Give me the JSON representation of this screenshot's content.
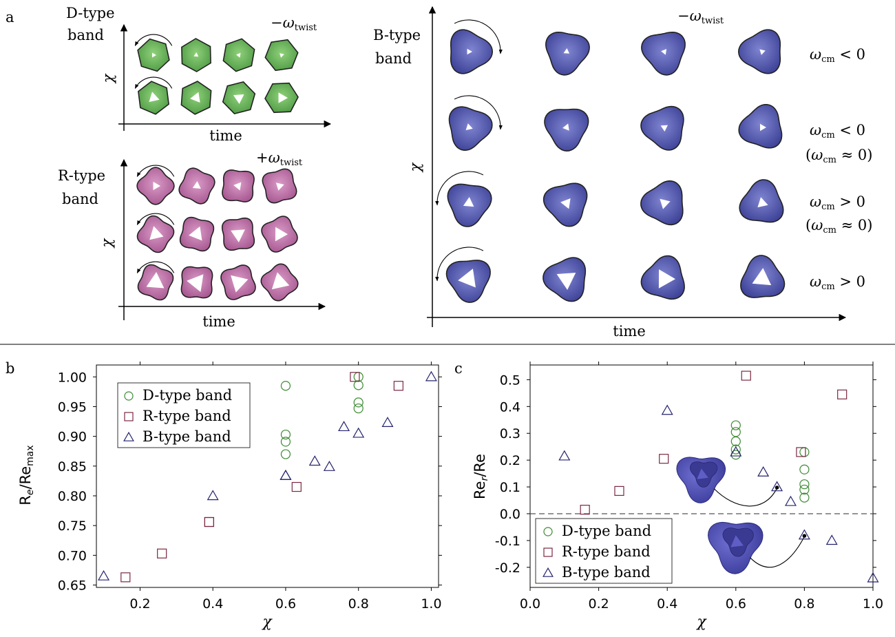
{
  "panel_a": {
    "letter": "a",
    "d_type": {
      "title_line1": "D-type",
      "title_line2": "band",
      "twist_label": "−ω",
      "twist_sub": "twist",
      "ylabel": "χ",
      "xlabel": "time",
      "color": "#5aa44c",
      "rows": 2,
      "cols": 4
    },
    "r_type": {
      "title_line1": "R-type",
      "title_line2": "band",
      "twist_label": "+ω",
      "twist_sub": "twist",
      "ylabel": "χ",
      "xlabel": "time",
      "color": "#b56a9e",
      "rows": 3,
      "cols": 4
    },
    "b_type": {
      "title_line1": "B-type",
      "title_line2": "band",
      "twist_label": "−ω",
      "twist_sub": "twist",
      "ylabel": "χ",
      "xlabel": "time",
      "color": "#4a4fa6",
      "rows": 4,
      "cols": 4,
      "row_labels": [
        {
          "main": "ω",
          "sub": "cm",
          "rel": " < 0",
          "paren": ""
        },
        {
          "main": "ω",
          "sub": "cm",
          "rel": " < 0",
          "paren": "(ω",
          "paren_sub": "cm",
          "paren_rel": " ≈ 0)"
        },
        {
          "main": "ω",
          "sub": "cm",
          "rel": " > 0",
          "paren": "(ω",
          "paren_sub": "cm",
          "paren_rel": " ≈ 0)"
        },
        {
          "main": "ω",
          "sub": "cm",
          "rel": " > 0",
          "paren": ""
        }
      ]
    }
  },
  "chart_data": [
    {
      "panel": "b",
      "type": "scatter",
      "xlabel": "χ",
      "ylabel_main": "R",
      "ylabel_sub": "e",
      "ylabel_rest": "/Re",
      "ylabel_rest_sub": "max",
      "xlim": [
        0.08,
        1.02
      ],
      "ylim": [
        0.646,
        1.02
      ],
      "xticks": [
        "0.2",
        "0.4",
        "0.6",
        "0.8",
        "1.0"
      ],
      "xtick_values": [
        0.2,
        0.4,
        0.6,
        0.8,
        1.0
      ],
      "yticks": [
        "0.65",
        "0.70",
        "0.75",
        "0.80",
        "0.85",
        "0.90",
        "0.95",
        "1.00"
      ],
      "ytick_values": [
        0.65,
        0.7,
        0.75,
        0.8,
        0.85,
        0.9,
        0.95,
        1.0
      ],
      "legend_position": "top-left",
      "series": [
        {
          "name": "D-type band",
          "marker": "circle",
          "color": "#3a8a30",
          "points": [
            [
              0.6,
              0.985
            ],
            [
              0.6,
              0.903
            ],
            [
              0.6,
              0.891
            ],
            [
              0.6,
              0.87
            ],
            [
              0.8,
              1.0
            ],
            [
              0.8,
              0.986
            ],
            [
              0.8,
              0.957
            ],
            [
              0.8,
              0.947
            ]
          ]
        },
        {
          "name": "R-type band",
          "marker": "square",
          "color": "#7a2840",
          "points": [
            [
              0.16,
              0.663
            ],
            [
              0.26,
              0.703
            ],
            [
              0.39,
              0.756
            ],
            [
              0.39,
              0.756
            ],
            [
              0.63,
              0.815
            ],
            [
              0.79,
              1.0
            ],
            [
              0.91,
              0.985
            ]
          ]
        },
        {
          "name": "B-type band",
          "marker": "triangle",
          "color": "#24236e",
          "points": [
            [
              0.1,
              0.665
            ],
            [
              0.4,
              0.8
            ],
            [
              0.6,
              0.834
            ],
            [
              0.6,
              0.834
            ],
            [
              0.68,
              0.858
            ],
            [
              0.72,
              0.849
            ],
            [
              0.76,
              0.916
            ],
            [
              0.8,
              0.905
            ],
            [
              0.88,
              0.923
            ],
            [
              1.0,
              1.0
            ]
          ]
        }
      ]
    },
    {
      "panel": "c",
      "type": "scatter",
      "xlabel": "χ",
      "ylabel_main": "Re",
      "ylabel_sub": "r",
      "ylabel_rest": "/Re",
      "xlim": [
        0.0,
        1.0
      ],
      "ylim": [
        -0.275,
        0.555
      ],
      "xticks": [
        "0.0",
        "0.2",
        "0.4",
        "0.6",
        "0.8",
        "1.0"
      ],
      "xtick_values": [
        0.0,
        0.2,
        0.4,
        0.6,
        0.8,
        1.0
      ],
      "yticks": [
        "-0.2",
        "-0.1",
        "0.0",
        "0.1",
        "0.2",
        "0.3",
        "0.4",
        "0.5"
      ],
      "ytick_values": [
        -0.2,
        -0.1,
        0.0,
        0.1,
        0.2,
        0.3,
        0.4,
        0.5
      ],
      "zero_line": 0.0,
      "legend_position": "bottom-left",
      "series": [
        {
          "name": "D-type band",
          "marker": "circle",
          "color": "#3a8a30",
          "points": [
            [
              0.6,
              0.33
            ],
            [
              0.6,
              0.305
            ],
            [
              0.6,
              0.27
            ],
            [
              0.6,
              0.24
            ],
            [
              0.6,
              0.22
            ],
            [
              0.8,
              0.23
            ],
            [
              0.8,
              0.165
            ],
            [
              0.8,
              0.11
            ],
            [
              0.8,
              0.09
            ],
            [
              0.8,
              0.06
            ]
          ]
        },
        {
          "name": "R-type band",
          "marker": "square",
          "color": "#7a2840",
          "points": [
            [
              0.16,
              0.015
            ],
            [
              0.26,
              0.085
            ],
            [
              0.39,
              0.205
            ],
            [
              0.63,
              0.515
            ],
            [
              0.79,
              0.23
            ],
            [
              0.91,
              0.445
            ]
          ]
        },
        {
          "name": "B-type band",
          "marker": "triangle",
          "color": "#24236e",
          "points": [
            [
              0.1,
              0.215
            ],
            [
              0.4,
              0.385
            ],
            [
              0.6,
              0.23
            ],
            [
              0.68,
              0.155
            ],
            [
              0.72,
              0.1
            ],
            [
              0.76,
              0.045
            ],
            [
              0.8,
              -0.08
            ],
            [
              0.88,
              -0.1
            ],
            [
              1.0,
              -0.24
            ]
          ]
        }
      ],
      "highlighted_points": [
        [
          0.72,
          0.1
        ],
        [
          0.8,
          -0.08
        ]
      ]
    }
  ]
}
